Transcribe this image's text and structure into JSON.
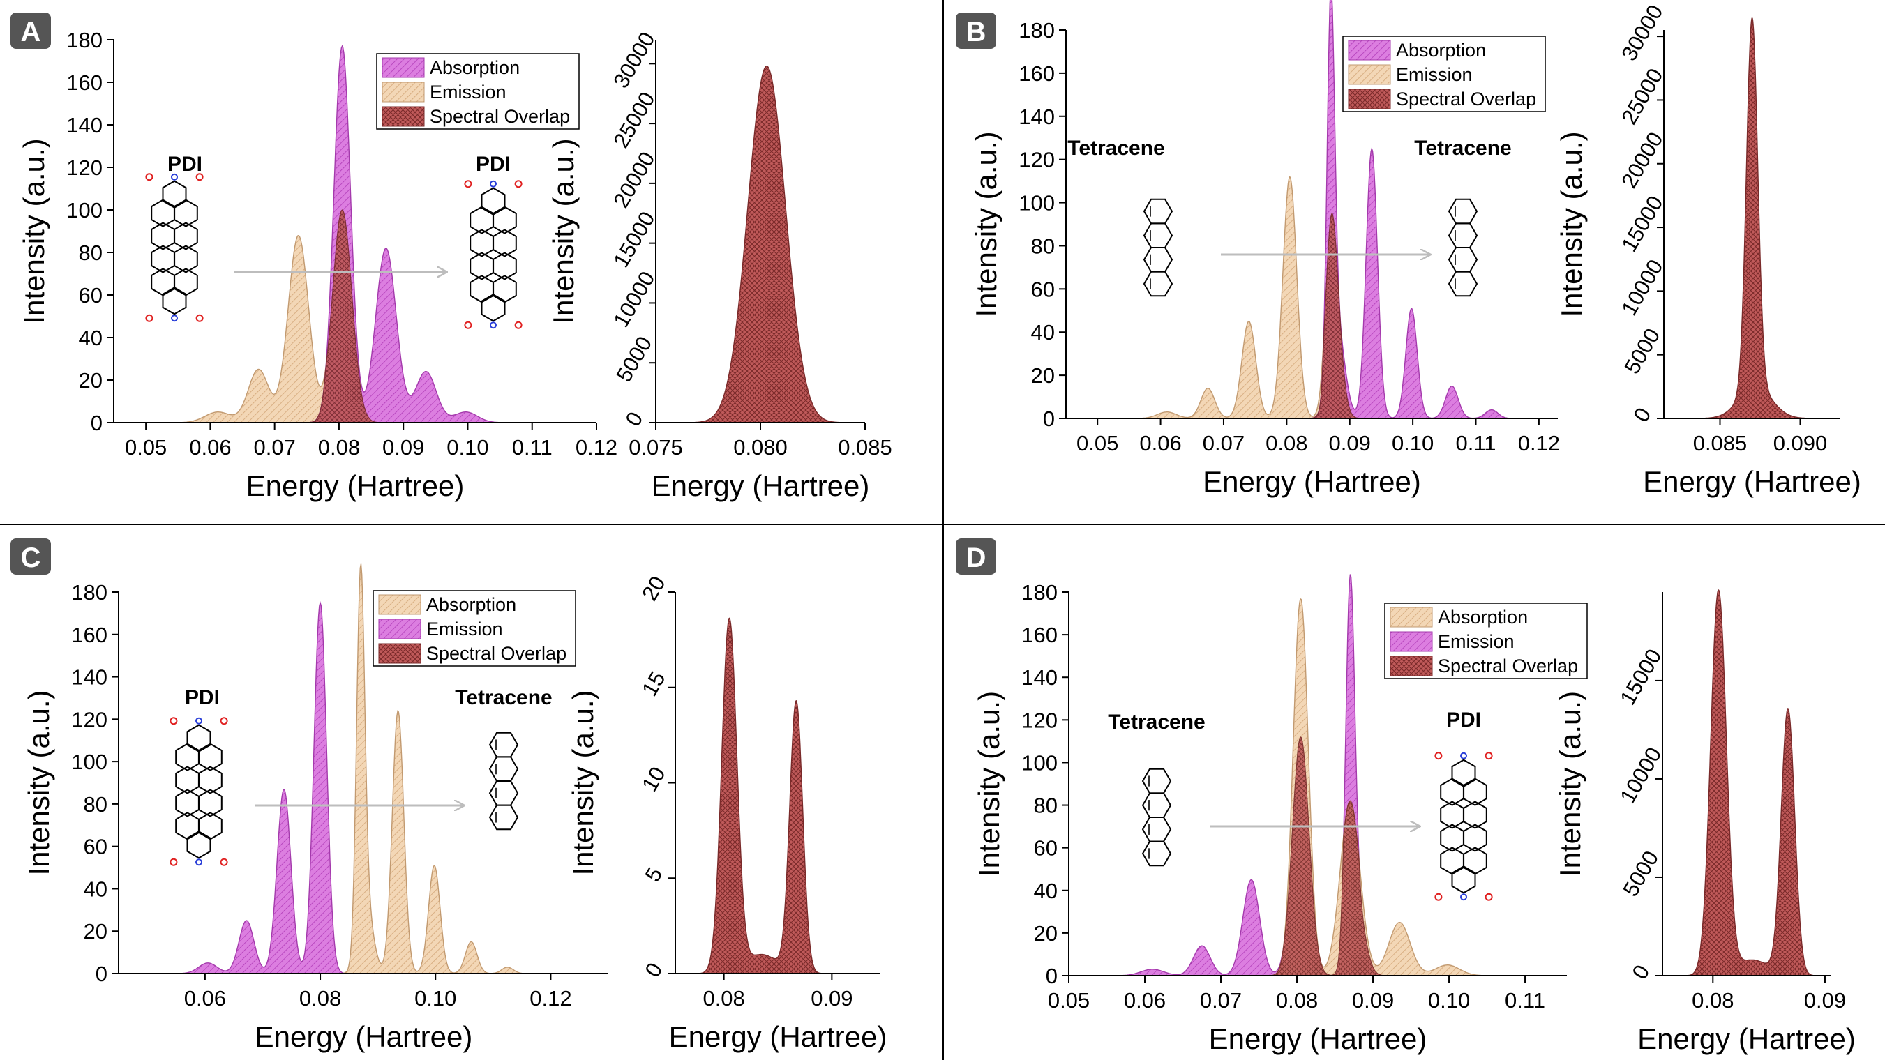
{
  "colors": {
    "absorption_magenta": "#d65cd6",
    "emission_tan": "#f0cca6",
    "overlap_red": "#b84a4a",
    "arrow": "#bdbdbd",
    "badge_bg": "#555555"
  },
  "chart_data": [
    {
      "panel": "A",
      "type": "area",
      "xlabel": "Energy (Hartree)",
      "ylabel": "Intensity (a.u.)",
      "xlim": [
        0.045,
        0.12
      ],
      "ylim": [
        0,
        180
      ],
      "xticks": [
        "0.05",
        "0.06",
        "0.07",
        "0.08",
        "0.09",
        "0.10",
        "0.11",
        "0.12"
      ],
      "yticks": [
        "0",
        "20",
        "40",
        "60",
        "80",
        "100",
        "120",
        "140",
        "160",
        "180"
      ],
      "legend": [
        "Absorption",
        "Emission",
        "Spectral Overlap"
      ],
      "legend_colors": [
        "magenta",
        "tan",
        "red"
      ],
      "donor_label": "PDI",
      "acceptor_label": "PDI",
      "donor_molecule": "pdi",
      "acceptor_molecule": "pdi",
      "series": [
        {
          "name": "Absorption",
          "color": "magenta",
          "peaks": [
            [
              0.0805,
              177,
              0.0013
            ],
            [
              0.0873,
              82,
              0.0016
            ],
            [
              0.0935,
              24,
              0.0016
            ],
            [
              0.0997,
              5,
              0.0018
            ]
          ]
        },
        {
          "name": "Emission",
          "color": "tan",
          "peaks": [
            [
              0.0805,
              100,
              0.0015
            ],
            [
              0.0737,
              88,
              0.0016
            ],
            [
              0.0675,
              25,
              0.0016
            ],
            [
              0.0612,
              5,
              0.002
            ]
          ]
        },
        {
          "name": "Spectral Overlap",
          "color": "red",
          "peaks": []
        }
      ],
      "inset": {
        "xlabel": "Energy (Hartree)",
        "ylabel": "Intensity (a.u.)",
        "xlim": [
          0.075,
          0.085
        ],
        "ylim": [
          0,
          32000
        ],
        "xticks": [
          "0.075",
          "0.080",
          "0.085"
        ],
        "yticks": [
          "0",
          "5000",
          "10000",
          "15000",
          "20000",
          "25000",
          "30000"
        ],
        "peaks": [
          [
            0.0803,
            29800,
            0.0009
          ]
        ]
      }
    },
    {
      "panel": "B",
      "type": "area",
      "xlabel": "Energy (Hartree)",
      "ylabel": "Intensity (a.u.)",
      "xlim": [
        0.045,
        0.123
      ],
      "ylim": [
        0,
        180
      ],
      "xticks": [
        "0.05",
        "0.06",
        "0.07",
        "0.08",
        "0.09",
        "0.10",
        "0.11",
        "0.12"
      ],
      "yticks": [
        "0",
        "20",
        "40",
        "60",
        "80",
        "100",
        "120",
        "140",
        "160",
        "180"
      ],
      "legend": [
        "Absorption",
        "Emission",
        "Spectral Overlap"
      ],
      "legend_colors": [
        "magenta",
        "tan",
        "red"
      ],
      "donor_label": "Tetracene",
      "acceptor_label": "Tetracene",
      "donor_molecule": "tetracene",
      "acceptor_molecule": "tetracene",
      "series": [
        {
          "name": "Absorption",
          "color": "magenta",
          "peaks": [
            [
              0.087,
              170,
              0.0006
            ],
            [
              0.0935,
              125,
              0.0009
            ],
            [
              0.0998,
              51,
              0.0009
            ],
            [
              0.1062,
              15,
              0.001
            ],
            [
              0.1125,
              4,
              0.001
            ],
            [
              0.088,
              42,
              0.0012
            ]
          ]
        },
        {
          "name": "Emission",
          "color": "tan",
          "peaks": [
            [
              0.0805,
              112,
              0.0011
            ],
            [
              0.087,
              75,
              0.0009
            ],
            [
              0.074,
              45,
              0.0011
            ],
            [
              0.0675,
              14,
              0.0011
            ],
            [
              0.061,
              3,
              0.0015
            ],
            [
              0.088,
              30,
              0.001
            ]
          ]
        },
        {
          "name": "Spectral Overlap",
          "color": "red",
          "peaks": []
        }
      ],
      "inset": {
        "xlabel": "Energy (Hartree)",
        "ylabel": "Intensity (a.u.)",
        "xlim": [
          0.0815,
          0.0925
        ],
        "ylim": [
          0,
          30500
        ],
        "xticks": [
          "0.085",
          "0.090"
        ],
        "yticks": [
          "0",
          "5000",
          "10000",
          "15000",
          "20000",
          "25000",
          "30000"
        ],
        "peaks": [
          [
            0.087,
            29000,
            0.00035
          ],
          [
            0.0872,
            2500,
            0.001
          ]
        ]
      }
    },
    {
      "panel": "C",
      "type": "area",
      "xlabel": "Energy (Hartree)",
      "ylabel": "Intensity (a.u.)",
      "xlim": [
        0.045,
        0.13
      ],
      "ylim": [
        0,
        180
      ],
      "xticks": [
        "0.06",
        "0.08",
        "0.10",
        "0.12"
      ],
      "yticks": [
        "0",
        "20",
        "40",
        "60",
        "80",
        "100",
        "120",
        "140",
        "160",
        "180"
      ],
      "legend": [
        "Absorption",
        "Emission",
        "Spectral Overlap"
      ],
      "legend_colors": [
        "tan",
        "magenta",
        "red"
      ],
      "donor_label": "PDI",
      "acceptor_label": "Tetracene",
      "donor_molecule": "pdi",
      "acceptor_molecule": "tetracene",
      "series": [
        {
          "name": "Absorption",
          "color": "tan",
          "peaks": [
            [
              0.087,
              172,
              0.0007
            ],
            [
              0.0935,
              124,
              0.001
            ],
            [
              0.0998,
              51,
              0.001
            ],
            [
              0.1062,
              15,
              0.001
            ],
            [
              0.1125,
              3,
              0.001
            ],
            [
              0.088,
              30,
              0.0012
            ]
          ]
        },
        {
          "name": "Emission",
          "color": "magenta",
          "peaks": [
            [
              0.08,
              175,
              0.0011
            ],
            [
              0.0737,
              87,
              0.0012
            ],
            [
              0.0672,
              25,
              0.0013
            ],
            [
              0.0605,
              5,
              0.0016
            ]
          ]
        },
        {
          "name": "Spectral Overlap",
          "color": "red",
          "peaks": []
        }
      ],
      "inset": {
        "xlabel": "Energy (Hartree)",
        "ylabel": "Intensity (a.u.)",
        "xlim": [
          0.0755,
          0.0945
        ],
        "ylim": [
          0,
          20
        ],
        "xticks": [
          "0.08",
          "0.09"
        ],
        "yticks": [
          "0",
          "5",
          "10",
          "15",
          "20"
        ],
        "peaks": [
          [
            0.0805,
            18.5,
            0.0007
          ],
          [
            0.0867,
            14.2,
            0.0006
          ],
          [
            0.0835,
            1,
            0.0015
          ]
        ]
      }
    },
    {
      "panel": "D",
      "type": "area",
      "xlabel": "Energy (Hartree)",
      "ylabel": "Intensity (a.u.)",
      "xlim": [
        0.05,
        0.1155
      ],
      "ylim": [
        0,
        180
      ],
      "xticks": [
        "0.05",
        "0.06",
        "0.07",
        "0.08",
        "0.09",
        "0.10",
        "0.11"
      ],
      "yticks": [
        "0",
        "20",
        "40",
        "60",
        "80",
        "100",
        "120",
        "140",
        "160",
        "180"
      ],
      "legend": [
        "Absorption",
        "Emission",
        "Spectral Overlap"
      ],
      "legend_colors": [
        "tan",
        "magenta",
        "red"
      ],
      "donor_label": "Tetracene",
      "acceptor_label": "PDI",
      "donor_molecule": "tetracene",
      "acceptor_molecule": "pdi",
      "series": [
        {
          "name": "Absorption",
          "color": "tan",
          "peaks": [
            [
              0.0805,
              177,
              0.001
            ],
            [
              0.087,
              82,
              0.0013
            ],
            [
              0.0935,
              25,
              0.0014
            ],
            [
              0.0998,
              5,
              0.0016
            ]
          ]
        },
        {
          "name": "Emission",
          "color": "magenta",
          "peaks": [
            [
              0.087,
              170,
              0.0006
            ],
            [
              0.0805,
              112,
              0.0011
            ],
            [
              0.074,
              45,
              0.0011
            ],
            [
              0.0675,
              14,
              0.0011
            ],
            [
              0.061,
              3,
              0.0015
            ],
            [
              0.088,
              30,
              0.001
            ]
          ]
        },
        {
          "name": "Spectral Overlap",
          "color": "red",
          "peaks": []
        }
      ],
      "inset": {
        "xlabel": "Energy (Hartree)",
        "ylabel": "Intensity (a.u.)",
        "xlim": [
          0.0755,
          0.0905
        ],
        "ylim": [
          0,
          19500
        ],
        "xticks": [
          "0.08",
          "0.09"
        ],
        "yticks": [
          "0",
          "5000",
          "10000",
          "15000"
        ],
        "peaks": [
          [
            0.0805,
            19500,
            0.0007
          ],
          [
            0.0867,
            13500,
            0.0006
          ],
          [
            0.0835,
            800,
            0.0015
          ]
        ]
      }
    }
  ]
}
